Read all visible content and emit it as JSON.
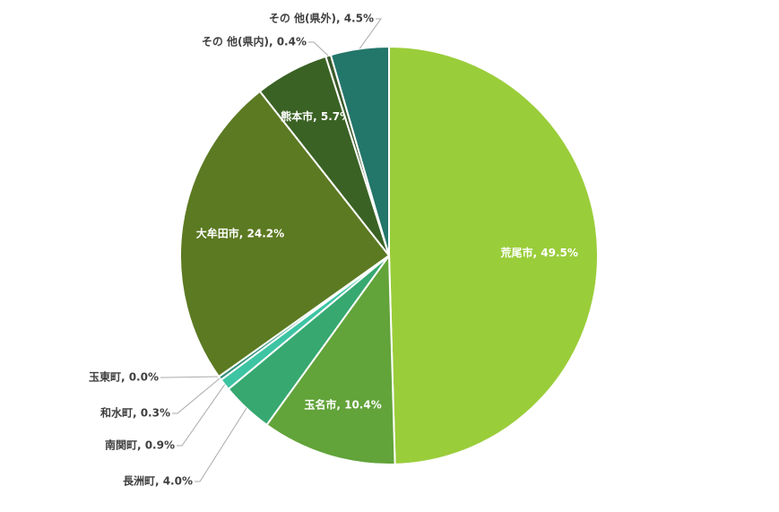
{
  "chart_data": {
    "type": "pie",
    "values": [
      49.5,
      10.4,
      4.0,
      0.9,
      0.3,
      0.0,
      24.2,
      5.7,
      0.4,
      4.5
    ],
    "value_labels": [
      "荒尾市, 49.5%",
      "玉名市, 10.4%",
      "長洲町, 4.0%",
      "南関町, 0.9%",
      "和水町, 0.3%",
      "玉東町, 0.0%",
      "大牟田市, 24.2%",
      "熊本市, 5.7%",
      "その 他(県内), 0.4%",
      "その 他(県外), 4.5%"
    ],
    "colors": [
      "#9acd3a",
      "#62a33a",
      "#36a870",
      "#3dc4a3",
      "#2e8f7a",
      "#4a7a30",
      "#5c7a22",
      "#3a6224",
      "#3a5a2a",
      "#23766a"
    ]
  }
}
